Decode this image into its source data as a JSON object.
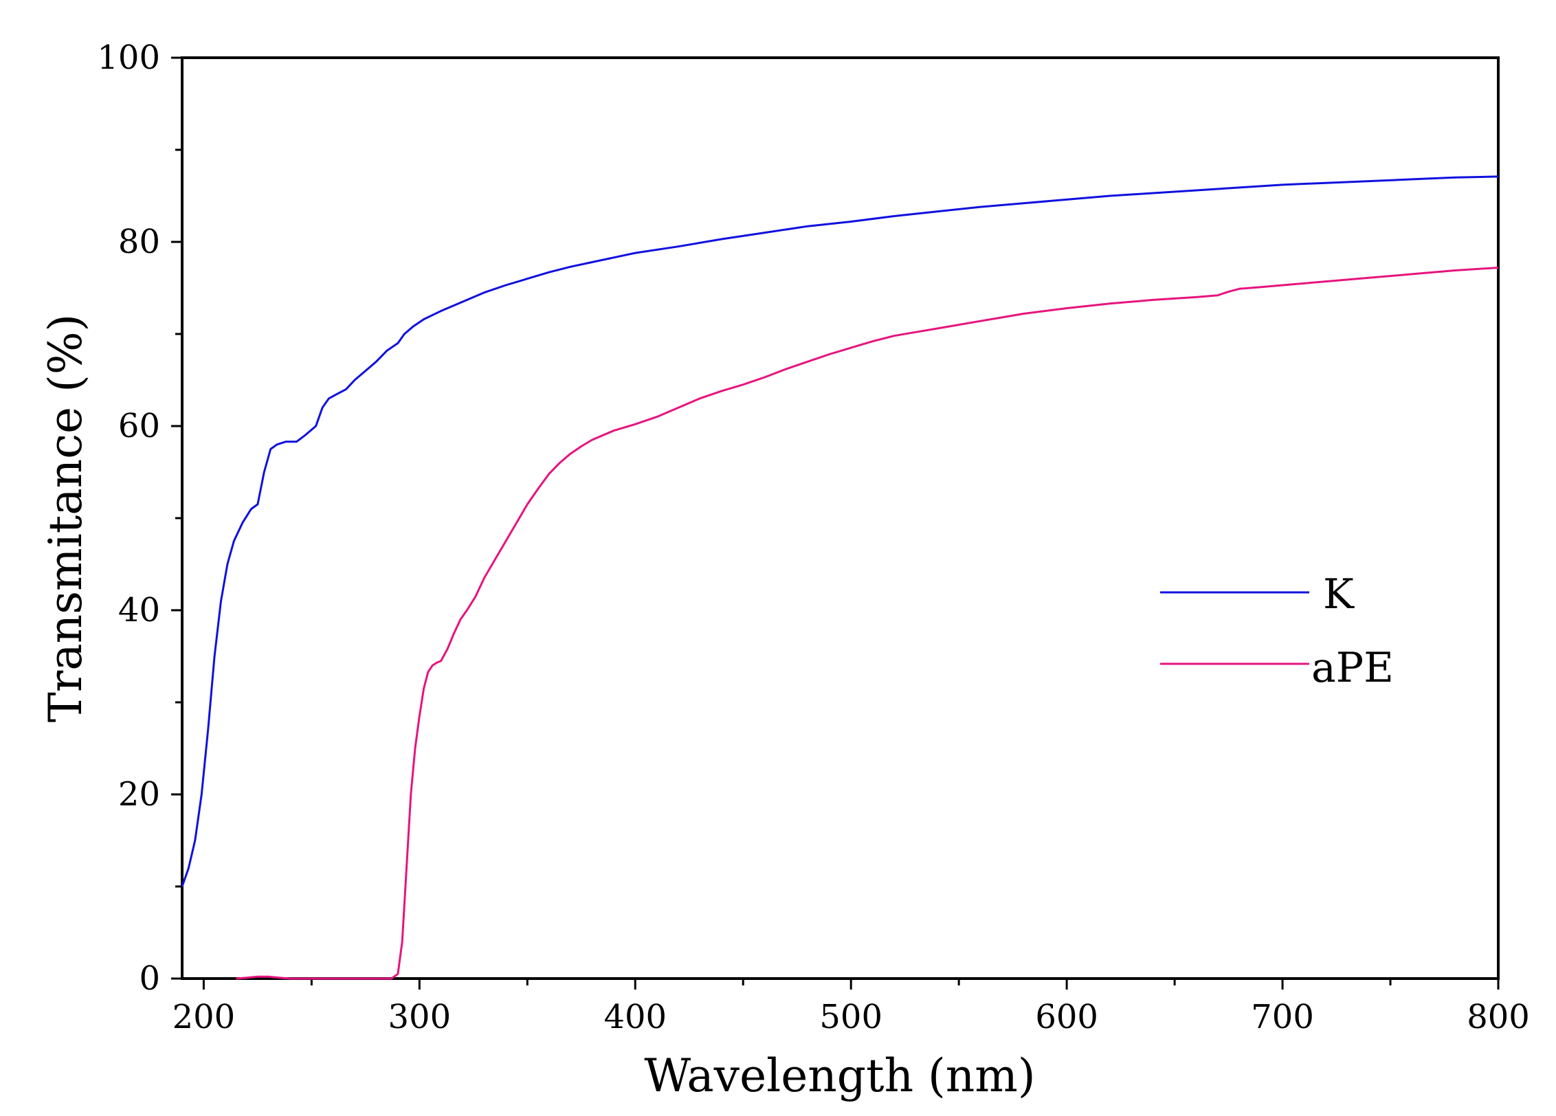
{
  "chart_data": {
    "type": "line",
    "title": "",
    "xlabel": "Wavelength (nm)",
    "ylabel": "Transmitance (%)",
    "xlim": [
      190,
      800
    ],
    "ylim": [
      0,
      100
    ],
    "x_ticks": [
      200,
      300,
      400,
      500,
      600,
      700,
      800
    ],
    "y_ticks": [
      0,
      20,
      40,
      60,
      80,
      100
    ],
    "x_tick_labels": [
      "200",
      "300",
      "400",
      "500",
      "600",
      "700",
      "800"
    ],
    "y_tick_labels": [
      "0",
      "20",
      "40",
      "60",
      "80",
      "100"
    ],
    "grid": false,
    "legend_position": "center-right",
    "series": [
      {
        "name": "K",
        "color": "#1010e0",
        "points": [
          [
            190,
            10
          ],
          [
            193,
            12
          ],
          [
            196,
            15
          ],
          [
            199,
            20
          ],
          [
            202,
            27
          ],
          [
            205,
            35
          ],
          [
            208,
            41
          ],
          [
            211,
            45
          ],
          [
            214,
            47.5
          ],
          [
            218,
            49.5
          ],
          [
            222,
            51
          ],
          [
            225,
            51.5
          ],
          [
            228,
            55
          ],
          [
            231,
            57.5
          ],
          [
            234,
            58
          ],
          [
            238,
            58.3
          ],
          [
            243,
            58.3
          ],
          [
            247,
            59
          ],
          [
            252,
            60
          ],
          [
            255,
            62
          ],
          [
            258,
            63
          ],
          [
            262,
            63.5
          ],
          [
            266,
            64
          ],
          [
            270,
            65
          ],
          [
            275,
            66
          ],
          [
            280,
            67
          ],
          [
            285,
            68.2
          ],
          [
            290,
            69
          ],
          [
            293,
            70
          ],
          [
            297,
            70.8
          ],
          [
            302,
            71.6
          ],
          [
            310,
            72.5
          ],
          [
            320,
            73.5
          ],
          [
            330,
            74.5
          ],
          [
            340,
            75.3
          ],
          [
            350,
            76
          ],
          [
            360,
            76.7
          ],
          [
            370,
            77.3
          ],
          [
            380,
            77.8
          ],
          [
            390,
            78.3
          ],
          [
            400,
            78.8
          ],
          [
            420,
            79.5
          ],
          [
            440,
            80.3
          ],
          [
            460,
            81
          ],
          [
            480,
            81.7
          ],
          [
            500,
            82.2
          ],
          [
            520,
            82.8
          ],
          [
            540,
            83.3
          ],
          [
            560,
            83.8
          ],
          [
            580,
            84.2
          ],
          [
            600,
            84.6
          ],
          [
            620,
            85
          ],
          [
            640,
            85.3
          ],
          [
            660,
            85.6
          ],
          [
            680,
            85.9
          ],
          [
            700,
            86.2
          ],
          [
            720,
            86.4
          ],
          [
            740,
            86.6
          ],
          [
            760,
            86.8
          ],
          [
            780,
            87
          ],
          [
            800,
            87.1
          ]
        ]
      },
      {
        "name": "aPE",
        "color": "#e6147e",
        "points": [
          [
            215,
            0
          ],
          [
            220,
            0.1
          ],
          [
            225,
            0.2
          ],
          [
            230,
            0.2
          ],
          [
            235,
            0.1
          ],
          [
            240,
            0
          ],
          [
            250,
            0
          ],
          [
            260,
            0
          ],
          [
            270,
            0
          ],
          [
            280,
            0
          ],
          [
            287,
            0
          ],
          [
            290,
            0.5
          ],
          [
            292,
            4
          ],
          [
            294,
            12
          ],
          [
            296,
            20
          ],
          [
            298,
            25
          ],
          [
            300,
            28.5
          ],
          [
            302,
            31.5
          ],
          [
            304,
            33.3
          ],
          [
            306,
            34
          ],
          [
            308,
            34.3
          ],
          [
            310,
            34.5
          ],
          [
            313,
            35.8
          ],
          [
            316,
            37.5
          ],
          [
            319,
            39
          ],
          [
            322,
            40
          ],
          [
            326,
            41.5
          ],
          [
            330,
            43.5
          ],
          [
            335,
            45.5
          ],
          [
            340,
            47.5
          ],
          [
            345,
            49.5
          ],
          [
            350,
            51.5
          ],
          [
            355,
            53.2
          ],
          [
            360,
            54.8
          ],
          [
            365,
            56
          ],
          [
            370,
            57
          ],
          [
            375,
            57.8
          ],
          [
            380,
            58.5
          ],
          [
            390,
            59.5
          ],
          [
            400,
            60.2
          ],
          [
            410,
            61
          ],
          [
            420,
            62
          ],
          [
            430,
            63
          ],
          [
            440,
            63.8
          ],
          [
            450,
            64.5
          ],
          [
            460,
            65.3
          ],
          [
            470,
            66.2
          ],
          [
            480,
            67
          ],
          [
            490,
            67.8
          ],
          [
            500,
            68.5
          ],
          [
            510,
            69.2
          ],
          [
            520,
            69.8
          ],
          [
            530,
            70.2
          ],
          [
            540,
            70.6
          ],
          [
            550,
            71
          ],
          [
            560,
            71.4
          ],
          [
            570,
            71.8
          ],
          [
            580,
            72.2
          ],
          [
            590,
            72.5
          ],
          [
            600,
            72.8
          ],
          [
            620,
            73.3
          ],
          [
            640,
            73.7
          ],
          [
            660,
            74
          ],
          [
            670,
            74.2
          ],
          [
            675,
            74.6
          ],
          [
            680,
            74.9
          ],
          [
            690,
            75.1
          ],
          [
            700,
            75.3
          ],
          [
            720,
            75.7
          ],
          [
            740,
            76.1
          ],
          [
            760,
            76.5
          ],
          [
            780,
            76.9
          ],
          [
            800,
            77.2
          ]
        ]
      }
    ]
  }
}
